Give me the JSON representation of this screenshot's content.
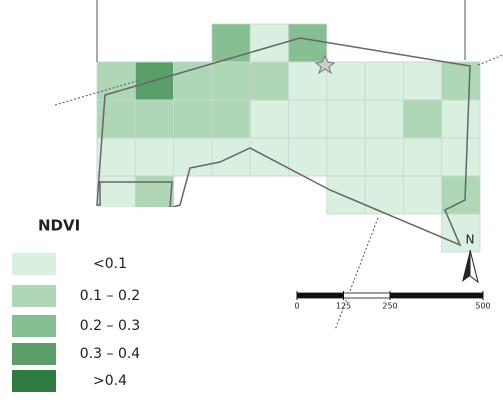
{
  "legend": {
    "title": "NDVI",
    "classes": [
      {
        "label": "<0.1",
        "color": "#d9f0e0"
      },
      {
        "label": "0.1 – 0.2",
        "color": "#aed6b7"
      },
      {
        "label": "0.2 – 0.3",
        "color": "#86bf92"
      },
      {
        "label": "0.3 – 0.4",
        "color": "#5a9f6a"
      },
      {
        "label": ">0.4",
        "color": "#2f7a40"
      }
    ]
  },
  "grid": [
    [
      null,
      null,
      null,
      2,
      0,
      2,
      null,
      null,
      null,
      null
    ],
    [
      1,
      3,
      1,
      1,
      1,
      0,
      0,
      0,
      0,
      1
    ],
    [
      1,
      1,
      1,
      1,
      0,
      0,
      0,
      0,
      1,
      0
    ],
    [
      0,
      0,
      0,
      0,
      0,
      0,
      0,
      0,
      0,
      0
    ],
    [
      0,
      1,
      null,
      null,
      null,
      null,
      0,
      0,
      0,
      1
    ],
    [
      null,
      null,
      null,
      null,
      null,
      null,
      null,
      null,
      null,
      0
    ]
  ],
  "north_label": "N",
  "scale_bar": {
    "ticks": [
      0,
      125,
      250,
      500
    ]
  }
}
